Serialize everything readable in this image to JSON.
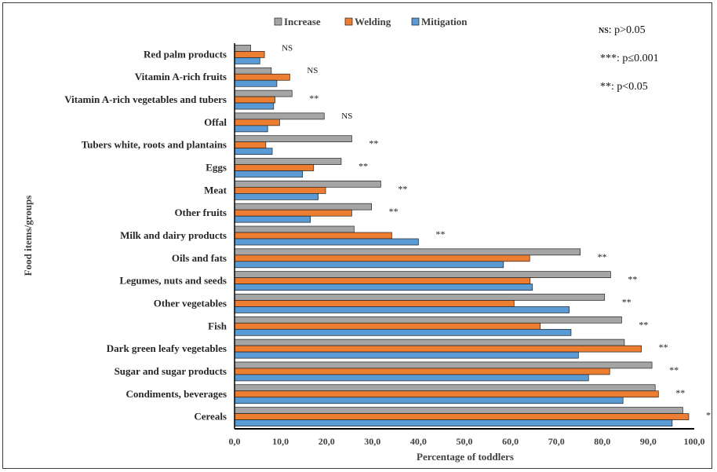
{
  "chart_data": {
    "type": "bar",
    "orientation": "horizontal",
    "ylabel": "Food items/groups",
    "xlabel": "Percentage of toddlers",
    "xlim": [
      0,
      100
    ],
    "xticks": [
      "0,0",
      "10,0",
      "20,0",
      "30,0",
      "40,0",
      "50,0",
      "60,0",
      "70,0",
      "80,0",
      "90,0",
      "100,0"
    ],
    "legend_position": "top",
    "categories": [
      "Red palm products",
      "Vitamin A-rich fruits",
      "Vitamin A-rich vegetables and tubers",
      "Offal",
      "Tubers white, roots and plantains",
      "Eggs",
      "Meat",
      "Other fruits",
      "Milk and dairy products",
      "Oils and fats",
      "Legumes, nuts and seeds",
      "Other vegetables",
      "Fish",
      "Dark green leafy vegetables",
      "Sugar and sugar products",
      "Condiments, beverages",
      "Cereals"
    ],
    "series": [
      {
        "name": "Increase",
        "color": "#a5a5a5",
        "values": [
          3.5,
          8,
          12.5,
          19.5,
          25.5,
          23.2,
          31.8,
          29.8,
          26,
          75.2,
          81.8,
          80.5,
          84.2,
          84.8,
          90.8,
          91.5,
          97.5
        ]
      },
      {
        "name": "Welding",
        "color": "#ed7d31",
        "values": [
          6.5,
          12,
          8.8,
          9.8,
          6.8,
          17.2,
          19.8,
          25.5,
          34.2,
          64.2,
          64.3,
          60.8,
          66.5,
          88.5,
          81.6,
          92.2,
          98.8
        ]
      },
      {
        "name": "Mitigation",
        "color": "#5b9bd5",
        "values": [
          5.5,
          9.2,
          8.5,
          7.2,
          8.2,
          14.8,
          18.2,
          16.5,
          40,
          58.5,
          64.8,
          72.8,
          73.2,
          74.8,
          77,
          84.5,
          95.2
        ]
      }
    ],
    "significance": [
      "NS",
      "NS",
      "**",
      "NS",
      "**",
      "**",
      "**",
      "**",
      "**",
      "**",
      "**",
      "**",
      "**",
      "**",
      "**",
      "**",
      "*"
    ],
    "notes": [
      {
        "prefix": "NS",
        "text": ": p>0.05"
      },
      {
        "prefix": "***",
        "text": ": p≤0.001"
      },
      {
        "prefix": "**",
        "text": ": p<0.05"
      }
    ]
  }
}
